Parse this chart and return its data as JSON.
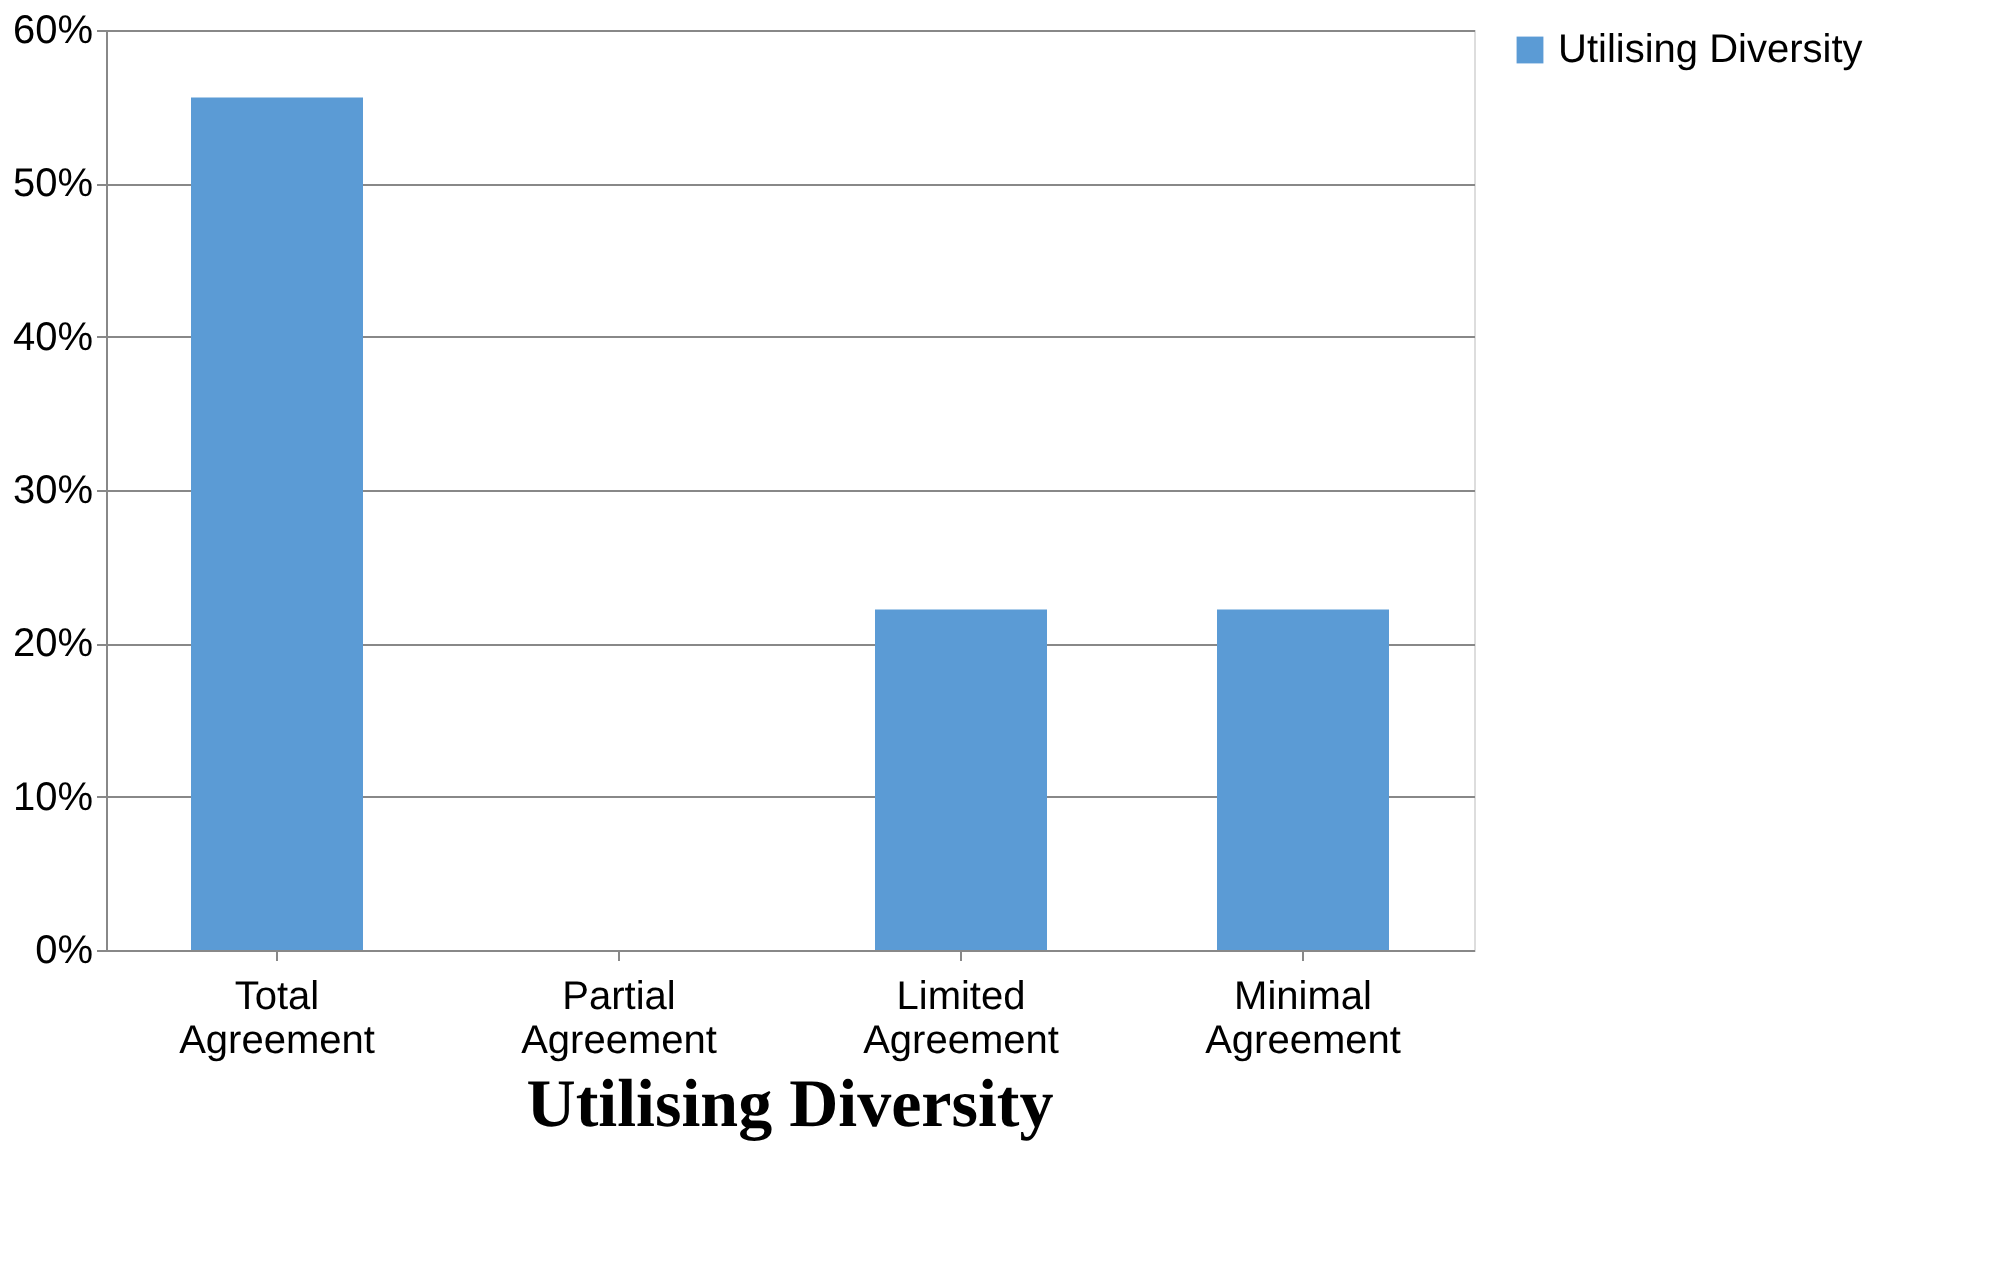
{
  "chart_data": {
    "type": "bar",
    "title": "Utilising Diversity",
    "categories": [
      "Total Agreement",
      "Partial Agreement",
      "Limited Agreement",
      "Minimal Agreement"
    ],
    "series": [
      {
        "name": "Utilising Diversity",
        "color": "#5b9bd5",
        "values": [
          55.6,
          0,
          22.2,
          22.2
        ]
      }
    ],
    "ylim": [
      0,
      60
    ],
    "yticks": [
      {
        "value": 0,
        "label": "0%"
      },
      {
        "value": 10,
        "label": "10%"
      },
      {
        "value": 20,
        "label": "20%"
      },
      {
        "value": 30,
        "label": "30%"
      },
      {
        "value": 40,
        "label": "40%"
      },
      {
        "value": 50,
        "label": "50%"
      },
      {
        "value": 60,
        "label": "60%"
      }
    ],
    "grid": "y",
    "legend": "right"
  }
}
